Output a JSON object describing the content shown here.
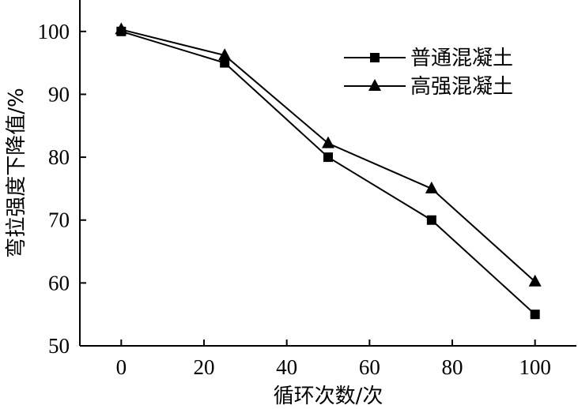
{
  "chart_data": {
    "type": "line",
    "xlabel": "循环次数/次",
    "ylabel": "弯拉强度下降值/%",
    "xlim": [
      -10,
      110
    ],
    "ylim": [
      50,
      105
    ],
    "xticks": [
      0,
      20,
      40,
      60,
      80,
      100
    ],
    "yticks": [
      50,
      60,
      70,
      80,
      90,
      100
    ],
    "x": [
      0,
      25,
      50,
      75,
      100
    ],
    "series": [
      {
        "name": "普通混凝土",
        "marker": "square",
        "values": [
          100,
          95,
          80,
          70,
          55
        ]
      },
      {
        "name": "高强混凝土",
        "marker": "triangle",
        "values": [
          100.3,
          96.2,
          82.2,
          75,
          60.2
        ]
      }
    ],
    "legend": "top-right",
    "grid": false,
    "colors": {
      "line": "#000000",
      "marker": "#000000"
    }
  }
}
